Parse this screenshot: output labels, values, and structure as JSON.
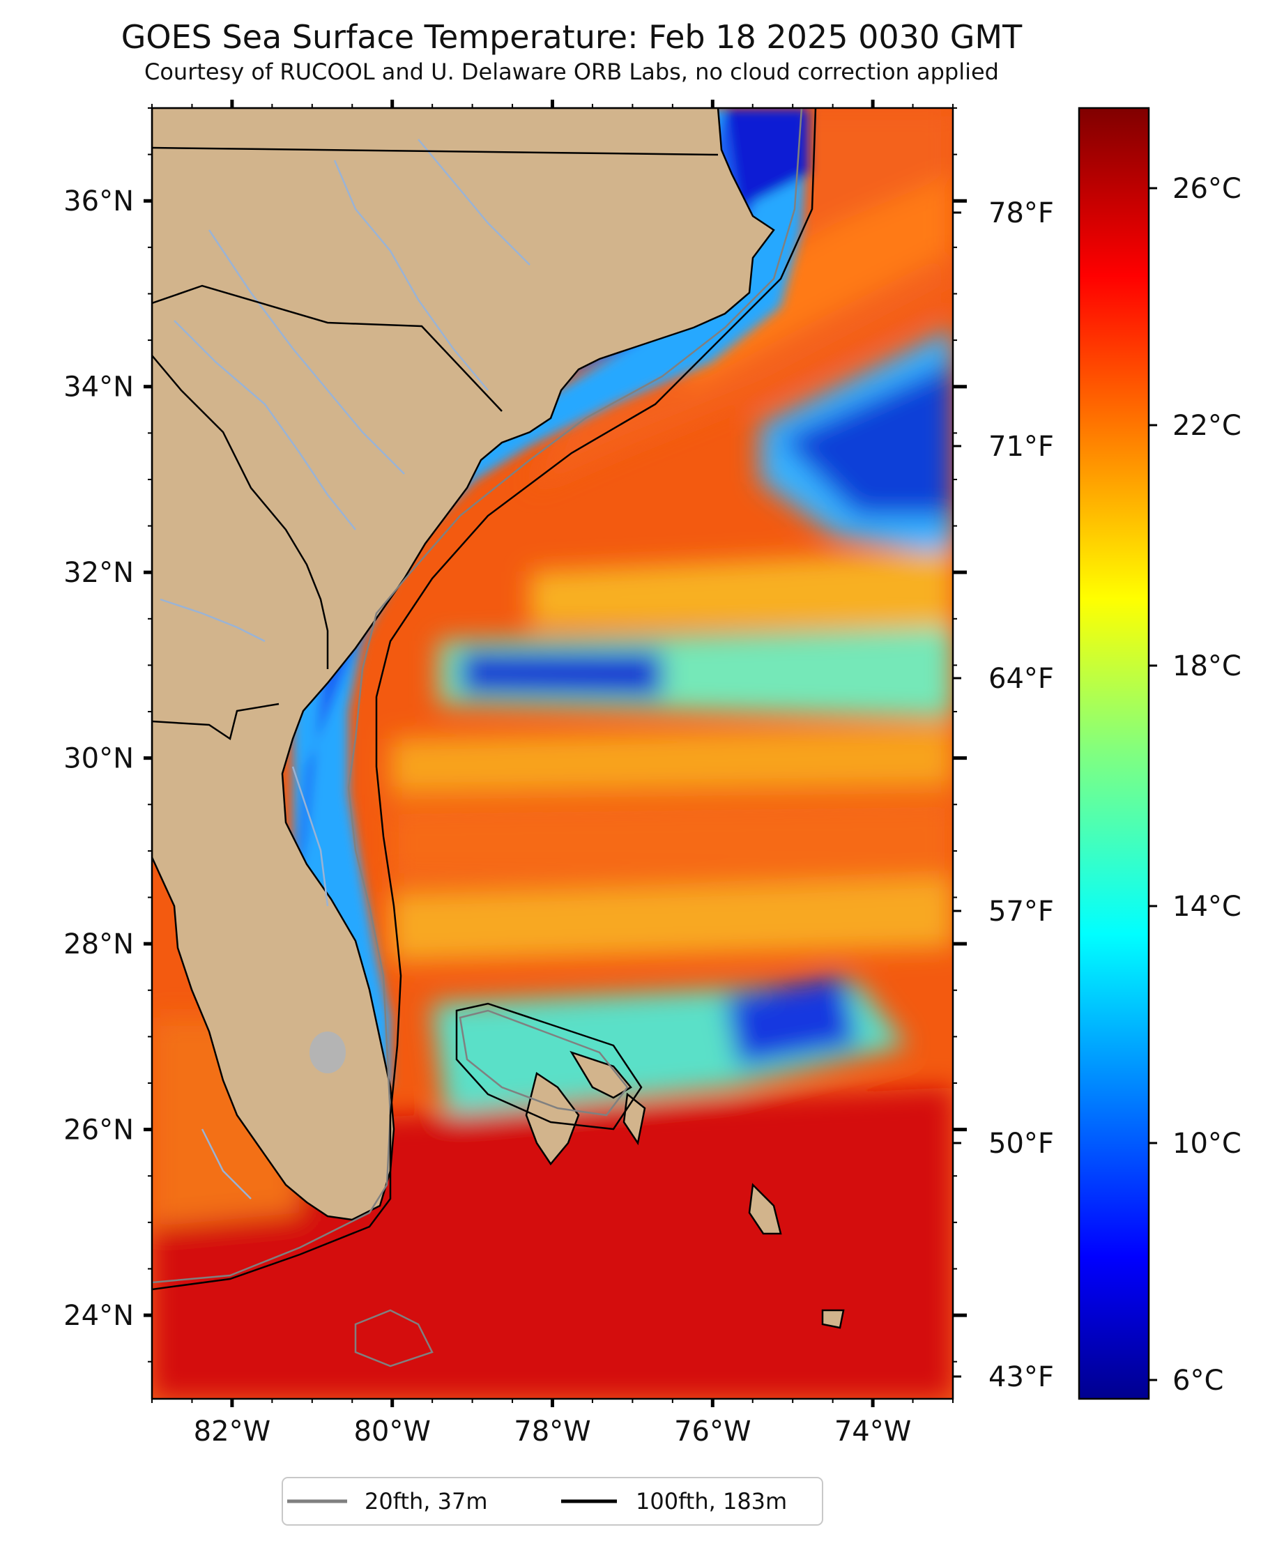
{
  "title": "GOES Sea Surface Temperature: Feb 18 2025 0030 GMT",
  "subtitle": "Courtesy of RUCOOL and U. Delaware ORB Labs, no cloud correction applied",
  "map": {
    "lon_range": [
      -83.0,
      -73.0
    ],
    "lat_range": [
      23.1,
      37.0
    ],
    "lon_ticks": [
      -82,
      -80,
      -78,
      -76,
      -74
    ],
    "lon_labels": [
      "82°W",
      "80°W",
      "78°W",
      "76°W",
      "74°W"
    ],
    "lat_ticks": [
      24,
      26,
      28,
      30,
      32,
      34,
      36
    ],
    "lat_labels": [
      "24°N",
      "26°N",
      "28°N",
      "30°N",
      "32°N",
      "34°N",
      "36°N"
    ],
    "fahrenheit_labels": [
      "78°F",
      "71°F",
      "64°F",
      "57°F",
      "50°F",
      "43°F"
    ],
    "land_color": "#d2b48c",
    "river_color": "#9ab3d5",
    "isobath_20_color": "#808080",
    "isobath_100_color": "#000000"
  },
  "colorbar": {
    "labels": [
      "26°C",
      "22°C",
      "18°C",
      "14°C",
      "10°C",
      "6°C"
    ],
    "colormap": "jet"
  },
  "legend": {
    "items": [
      {
        "label": "20fth, 37m",
        "color": "#808080"
      },
      {
        "label": "100fth, 183m",
        "color": "#000000"
      }
    ]
  }
}
